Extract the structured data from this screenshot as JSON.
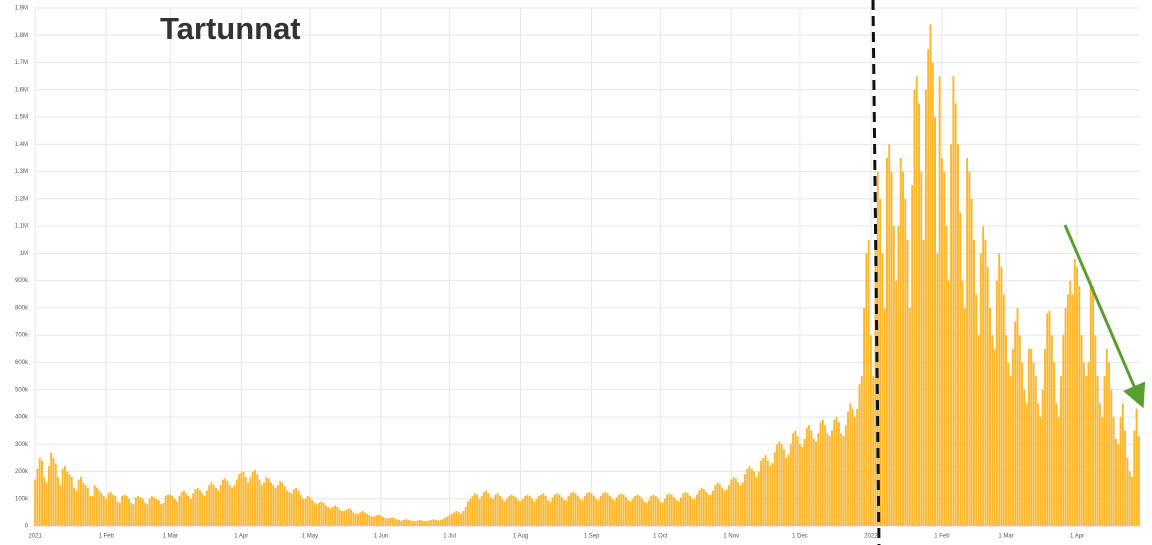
{
  "chart_data": {
    "type": "bar",
    "title": "Tartunnat",
    "color": "#fbb72c",
    "grid": true,
    "ylim": [
      0,
      1900000
    ],
    "yticks": [
      0,
      {
        "value": 100000,
        "label": "100k"
      },
      {
        "value": 200000,
        "label": "200k"
      },
      {
        "value": 300000,
        "label": "300k"
      },
      {
        "value": 400000,
        "label": "400k"
      },
      {
        "value": 500000,
        "label": "500k"
      },
      {
        "value": 600000,
        "label": "600k"
      },
      {
        "value": 700000,
        "label": "700k"
      },
      {
        "value": 800000,
        "label": "800k"
      },
      {
        "value": 900000,
        "label": "900k"
      },
      {
        "value": 1000000,
        "label": "1M"
      },
      {
        "value": 1100000,
        "label": "1.1M"
      },
      {
        "value": 1200000,
        "label": "1.2M"
      },
      {
        "value": 1300000,
        "label": "1.3M"
      },
      {
        "value": 1400000,
        "label": "1.4M"
      },
      {
        "value": 1500000,
        "label": "1.5M"
      },
      {
        "value": 1600000,
        "label": "1.6M"
      },
      {
        "value": 1700000,
        "label": "1.7M"
      },
      {
        "value": 1800000,
        "label": "1.8M"
      },
      {
        "value": 1900000,
        "label": "1.9M"
      }
    ],
    "categories": [
      "2021",
      null,
      null,
      null,
      null,
      null,
      null,
      null,
      null,
      null,
      null,
      null,
      null,
      null,
      null,
      null,
      null,
      null,
      null,
      null,
      null,
      null,
      null,
      null,
      null,
      null,
      null,
      null,
      null,
      null,
      null,
      "1 Feb",
      null,
      null,
      null,
      null,
      null,
      null,
      null,
      null,
      null,
      null,
      null,
      null,
      null,
      null,
      null,
      null,
      null,
      null,
      null,
      null,
      null,
      null,
      null,
      null,
      null,
      null,
      null,
      "1 Mar",
      null,
      null,
      null,
      null,
      null,
      null,
      null,
      null,
      null,
      null,
      null,
      null,
      null,
      null,
      null,
      null,
      null,
      null,
      null,
      null,
      null,
      null,
      null,
      null,
      null,
      null,
      null,
      null,
      null,
      null,
      "1 Apr",
      null,
      null,
      null,
      null,
      null,
      null,
      null,
      null,
      null,
      null,
      null,
      null,
      null,
      null,
      null,
      null,
      null,
      null,
      null,
      null,
      null,
      null,
      null,
      null,
      null,
      null,
      null,
      null,
      null,
      "1 May",
      null,
      null,
      null,
      null,
      null,
      null,
      null,
      null,
      null,
      null,
      null,
      null,
      null,
      null,
      null,
      null,
      null,
      null,
      null,
      null,
      null,
      null,
      null,
      null,
      null,
      null,
      null,
      null,
      null,
      null,
      "1 Jun",
      null,
      null,
      null,
      null,
      null,
      null,
      null,
      null,
      null,
      null,
      null,
      null,
      null,
      null,
      null,
      null,
      null,
      null,
      null,
      null,
      null,
      null,
      null,
      null,
      null,
      null,
      null,
      null,
      null,
      "1 Jul",
      null,
      null,
      null,
      null,
      null,
      null,
      null,
      null,
      null,
      null,
      null,
      null,
      null,
      null,
      null,
      null,
      null,
      null,
      null,
      null,
      null,
      null,
      null,
      null,
      null,
      null,
      null,
      null,
      null,
      null,
      "1 Aug",
      null,
      null,
      null,
      null,
      null,
      null,
      null,
      null,
      null,
      null,
      null,
      null,
      null,
      null,
      null,
      null,
      null,
      null,
      null,
      null,
      null,
      null,
      null,
      null,
      null,
      null,
      null,
      null,
      null,
      null,
      "1 Sep",
      null,
      null,
      null,
      null,
      null,
      null,
      null,
      null,
      null,
      null,
      null,
      null,
      null,
      null,
      null,
      null,
      null,
      null,
      null,
      null,
      null,
      null,
      null,
      null,
      null,
      null,
      null,
      null,
      null,
      "1 Oct",
      null,
      null,
      null,
      null,
      null,
      null,
      null,
      null,
      null,
      null,
      null,
      null,
      null,
      null,
      null,
      null,
      null,
      null,
      null,
      null,
      null,
      null,
      null,
      null,
      null,
      null,
      null,
      null,
      null,
      null,
      "1 Nov",
      null,
      null,
      null,
      null,
      null,
      null,
      null,
      null,
      null,
      null,
      null,
      null,
      null,
      null,
      null,
      null,
      null,
      null,
      null,
      null,
      null,
      null,
      null,
      null,
      null,
      null,
      null,
      null,
      null,
      "1 Dec",
      null,
      null,
      null,
      null,
      null,
      null,
      null,
      null,
      null,
      null,
      null,
      null,
      null,
      null,
      null,
      null,
      null,
      null,
      null,
      null,
      null,
      null,
      null,
      null,
      null,
      null,
      null,
      null,
      null,
      null,
      "2022",
      null,
      null,
      null,
      null,
      null,
      null,
      null,
      null,
      null,
      null,
      null,
      null,
      null,
      null,
      null,
      null,
      null,
      null,
      null,
      null,
      null,
      null,
      null,
      null,
      null,
      null,
      null,
      null,
      null,
      null,
      "1 Feb",
      null,
      null,
      null,
      null,
      null,
      null,
      null,
      null,
      null,
      null,
      null,
      null,
      null,
      null,
      null,
      null,
      null,
      null,
      null,
      null,
      null,
      null,
      null,
      null,
      null,
      null,
      null,
      "1 Mar",
      null,
      null,
      null,
      null,
      null,
      null,
      null,
      null,
      null,
      null,
      null,
      null,
      null,
      null,
      null,
      null,
      null,
      null,
      null,
      null,
      null,
      null,
      null,
      null,
      null,
      null,
      null,
      null,
      null,
      null,
      "1 Apr",
      null,
      null,
      null,
      null,
      null,
      null,
      null,
      null,
      null,
      null,
      null,
      null,
      null,
      null,
      null,
      null,
      null,
      null,
      null,
      null,
      null,
      null,
      null,
      null,
      null,
      null,
      null
    ],
    "values": [
      170000,
      210000,
      250000,
      240000,
      180000,
      160000,
      220000,
      270000,
      250000,
      230000,
      180000,
      150000,
      210000,
      220000,
      200000,
      190000,
      180000,
      140000,
      130000,
      170000,
      180000,
      160000,
      150000,
      140000,
      110000,
      110000,
      150000,
      140000,
      130000,
      120000,
      110000,
      100000,
      120000,
      125000,
      115000,
      110000,
      90000,
      85000,
      110000,
      115000,
      110000,
      100000,
      85000,
      80000,
      105000,
      110000,
      105000,
      100000,
      85000,
      80000,
      100000,
      110000,
      105000,
      100000,
      95000,
      80000,
      85000,
      110000,
      115000,
      115000,
      110000,
      100000,
      90000,
      110000,
      125000,
      130000,
      120000,
      110000,
      100000,
      120000,
      135000,
      140000,
      130000,
      120000,
      110000,
      130000,
      150000,
      160000,
      150000,
      140000,
      130000,
      150000,
      170000,
      175000,
      165000,
      150000,
      140000,
      150000,
      170000,
      190000,
      195000,
      200000,
      180000,
      160000,
      180000,
      200000,
      205000,
      190000,
      170000,
      150000,
      160000,
      180000,
      175000,
      160000,
      150000,
      140000,
      150000,
      165000,
      160000,
      145000,
      130000,
      125000,
      120000,
      135000,
      140000,
      130000,
      115000,
      100000,
      100000,
      110000,
      105000,
      95000,
      85000,
      80000,
      85000,
      90000,
      85000,
      75000,
      70000,
      65000,
      70000,
      75000,
      70000,
      60000,
      55000,
      55000,
      60000,
      65000,
      60000,
      50000,
      45000,
      45000,
      50000,
      55000,
      50000,
      45000,
      40000,
      35000,
      35000,
      40000,
      42000,
      38000,
      33000,
      30000,
      28000,
      30000,
      32000,
      28000,
      25000,
      22000,
      20000,
      22000,
      25000,
      22000,
      20000,
      18000,
      18000,
      20000,
      22000,
      20000,
      18000,
      18000,
      20000,
      22000,
      25000,
      22000,
      20000,
      22000,
      25000,
      30000,
      35000,
      40000,
      45000,
      50000,
      55000,
      50000,
      45000,
      55000,
      70000,
      90000,
      100000,
      110000,
      120000,
      115000,
      100000,
      110000,
      125000,
      130000,
      120000,
      105000,
      100000,
      115000,
      120000,
      110000,
      100000,
      90000,
      100000,
      110000,
      115000,
      110000,
      105000,
      95000,
      90000,
      100000,
      110000,
      115000,
      110000,
      100000,
      90000,
      100000,
      110000,
      115000,
      120000,
      110000,
      95000,
      90000,
      105000,
      115000,
      120000,
      115000,
      105000,
      95000,
      95000,
      110000,
      120000,
      125000,
      120000,
      110000,
      100000,
      95000,
      110000,
      120000,
      125000,
      120000,
      110000,
      100000,
      95000,
      110000,
      120000,
      125000,
      120000,
      110000,
      100000,
      95000,
      105000,
      115000,
      120000,
      115000,
      105000,
      95000,
      90000,
      100000,
      110000,
      115000,
      110000,
      100000,
      90000,
      85000,
      95000,
      110000,
      115000,
      110000,
      100000,
      90000,
      85000,
      100000,
      115000,
      120000,
      115000,
      105000,
      95000,
      90000,
      105000,
      120000,
      125000,
      120000,
      110000,
      100000,
      100000,
      115000,
      130000,
      140000,
      135000,
      125000,
      115000,
      115000,
      130000,
      150000,
      160000,
      155000,
      140000,
      130000,
      135000,
      150000,
      170000,
      180000,
      175000,
      160000,
      150000,
      160000,
      190000,
      210000,
      220000,
      210000,
      200000,
      180000,
      200000,
      240000,
      250000,
      260000,
      240000,
      220000,
      230000,
      270000,
      300000,
      310000,
      300000,
      280000,
      250000,
      260000,
      300000,
      340000,
      350000,
      330000,
      300000,
      290000,
      320000,
      360000,
      370000,
      350000,
      320000,
      310000,
      340000,
      380000,
      390000,
      370000,
      340000,
      330000,
      350000,
      390000,
      400000,
      380000,
      340000,
      330000,
      370000,
      420000,
      450000,
      430000,
      400000,
      430000,
      520000,
      550000,
      800000,
      1000000,
      1050000,
      700000,
      550000,
      1050000,
      1300000,
      1200000,
      1000000,
      800000,
      1350000,
      1400000,
      1300000,
      1100000,
      900000,
      1100000,
      1350000,
      1300000,
      1200000,
      1050000,
      800000,
      1250000,
      1600000,
      1650000,
      1550000,
      1300000,
      1050000,
      1600000,
      1750000,
      1840000,
      1700000,
      1500000,
      1000000,
      1650000,
      1350000,
      1300000,
      1100000,
      900000,
      1400000,
      1650000,
      1550000,
      1400000,
      1150000,
      900000,
      800000,
      1350000,
      1300000,
      1200000,
      1050000,
      850000,
      700000,
      1000000,
      1100000,
      1050000,
      950000,
      800000,
      700000,
      650000,
      900000,
      1000000,
      950000,
      850000,
      700000,
      600000,
      550000,
      650000,
      750000,
      800000,
      700000,
      600000,
      500000,
      450000,
      650000,
      650000,
      600000,
      550000,
      450000,
      400000,
      500000,
      650000,
      780000,
      790000,
      700000,
      600000,
      450000,
      400000,
      550000,
      700000,
      800000,
      850000,
      900000,
      850000,
      980000,
      950000,
      880000,
      700000,
      600000,
      550000,
      600000,
      900000,
      880000,
      700000,
      550000,
      450000,
      400000,
      550000,
      650000,
      600000,
      500000,
      400000,
      320000,
      300000,
      400000,
      450000,
      350000,
      250000,
      200000,
      180000,
      350000,
      430000,
      330000
    ]
  }
}
